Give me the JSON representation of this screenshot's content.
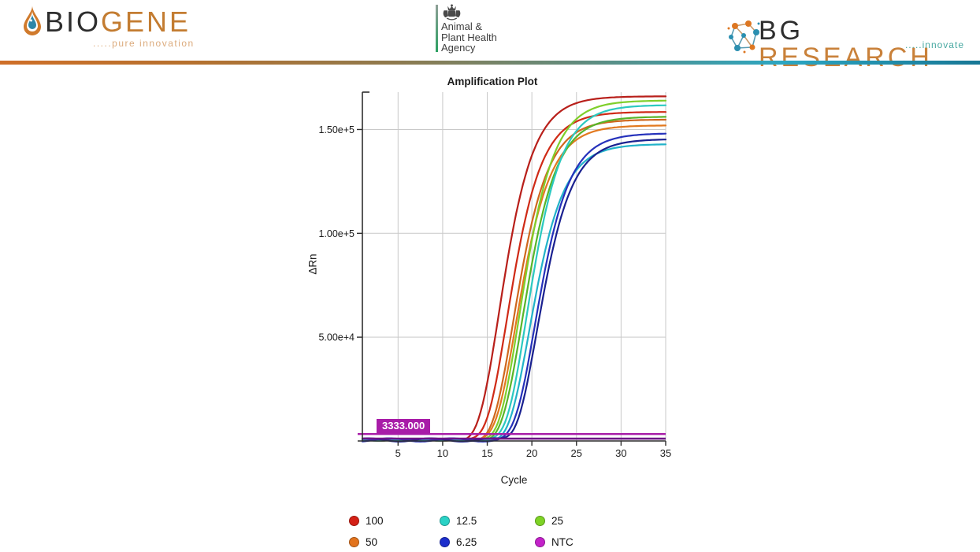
{
  "header": {
    "biogene": {
      "text_bio": "BIO",
      "text_gene": "GENE",
      "tagline": ".....pure innovation"
    },
    "apha": {
      "line1": "Animal &",
      "line2": "Plant Health",
      "line3": "Agency"
    },
    "bg_research": {
      "text_bg": "BG",
      "text_research": "RESEARCH",
      "tagline": ".....innovate"
    },
    "divider_gradient": [
      "#cf6f28",
      "#b5712f",
      "#8f7a4e",
      "#5f8d80",
      "#2ba6c2",
      "#187795"
    ]
  },
  "chart_data": {
    "type": "line",
    "title": "Amplification Plot",
    "xlabel": "Cycle",
    "ylabel": "ΔRn",
    "xlim": [
      1,
      35
    ],
    "ylim": [
      0,
      168000
    ],
    "x_ticks": [
      5,
      10,
      15,
      20,
      25,
      30,
      35
    ],
    "y_ticks": [
      {
        "value": 50000,
        "label": "5.00e+4"
      },
      {
        "value": 100000,
        "label": "1.00e+5"
      },
      {
        "value": 150000,
        "label": "1.50e+5"
      }
    ],
    "grid": true,
    "threshold": {
      "value": 3333,
      "label": "3333.000",
      "color": "#a81ca8"
    },
    "ntc_baseline": {
      "name": "NTC",
      "value": 1100,
      "color": "#6d1585"
    },
    "series": [
      {
        "name": "100 rep1",
        "group": "100",
        "color": "#b81f1a",
        "mid_cycle": 16.3,
        "plateau": 166000,
        "k": 0.45
      },
      {
        "name": "100 rep2",
        "group": "100",
        "color": "#cf2a16",
        "mid_cycle": 17.2,
        "plateau": 158500,
        "k": 0.45
      },
      {
        "name": "50 rep1",
        "group": "50",
        "color": "#cf671d",
        "mid_cycle": 17.9,
        "plateau": 154800,
        "k": 0.45
      },
      {
        "name": "50 rep2",
        "group": "50",
        "color": "#e2791f",
        "mid_cycle": 18.2,
        "plateau": 152000,
        "k": 0.45
      },
      {
        "name": "25 rep1",
        "group": "25",
        "color": "#7fcf2b",
        "mid_cycle": 18.6,
        "plateau": 164000,
        "k": 0.45
      },
      {
        "name": "25 rep2",
        "group": "25",
        "color": "#58b52a",
        "mid_cycle": 18.9,
        "plateau": 156200,
        "k": 0.45
      },
      {
        "name": "12.5 rep1",
        "group": "12.5",
        "color": "#2bc9c0",
        "mid_cycle": 19.4,
        "plateau": 161800,
        "k": 0.45
      },
      {
        "name": "12.5 rep2",
        "group": "12.5",
        "color": "#22b2c9",
        "mid_cycle": 19.7,
        "plateau": 143000,
        "k": 0.45
      },
      {
        "name": "6.25 rep1",
        "group": "6.25",
        "color": "#2531bb",
        "mid_cycle": 20.3,
        "plateau": 148200,
        "k": 0.45
      },
      {
        "name": "6.25 rep2",
        "group": "6.25",
        "color": "#1a2190",
        "mid_cycle": 20.6,
        "plateau": 145400,
        "k": 0.45
      }
    ],
    "legend": [
      {
        "label": "100",
        "color": "#d42016"
      },
      {
        "label": "50",
        "color": "#e2731d"
      },
      {
        "label": "12.5",
        "color": "#2ad2c6"
      },
      {
        "label": "6.25",
        "color": "#1c2ecc"
      },
      {
        "label": "25",
        "color": "#7ed326"
      },
      {
        "label": "NTC",
        "color": "#c322c9"
      }
    ],
    "legend_position": "bottom"
  }
}
